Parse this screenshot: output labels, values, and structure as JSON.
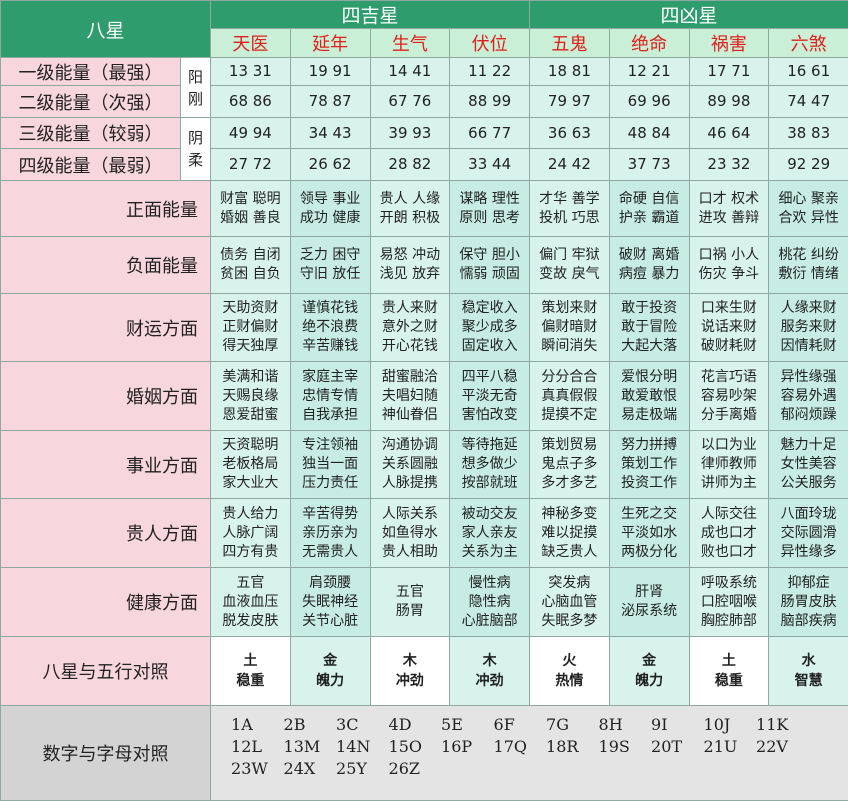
{
  "header": {
    "title": "八星",
    "auspicious": "四吉星",
    "inauspicious": "四凶星",
    "stars": [
      "天医",
      "延年",
      "生气",
      "伏位",
      "五鬼",
      "绝命",
      "祸害",
      "六煞"
    ]
  },
  "energy": {
    "yang": "阳刚",
    "yin": "阴柔",
    "rows": [
      {
        "label": "一级能量（最强）",
        "values": [
          "13 31",
          "19 91",
          "14 41",
          "11 22",
          "18 81",
          "12 21",
          "17 71",
          "16 61"
        ]
      },
      {
        "label": "二级能量（次强）",
        "values": [
          "68 86",
          "78 87",
          "67 76",
          "88 99",
          "79 97",
          "69 96",
          "89 98",
          "74 47"
        ]
      },
      {
        "label": "三级能量（较弱）",
        "values": [
          "49 94",
          "34 43",
          "39 93",
          "66 77",
          "36 63",
          "48 84",
          "46 64",
          "38 83"
        ]
      },
      {
        "label": "四级能量（最弱）",
        "values": [
          "27 72",
          "26 62",
          "28 82",
          "33 44",
          "24 42",
          "37 73",
          "23 32",
          "92 29"
        ]
      }
    ]
  },
  "traits": [
    {
      "label": "正面能量",
      "cells": [
        [
          "财富 聪明",
          "婚姻 善良"
        ],
        [
          "领导 事业",
          "成功 健康"
        ],
        [
          "贵人 人缘",
          "开朗 积极"
        ],
        [
          "谋略 理性",
          "原则 思考"
        ],
        [
          "才华 善学",
          "投机 巧思"
        ],
        [
          "命硬 自信",
          "护亲 霸道"
        ],
        [
          "口才 权术",
          "进攻 善辩"
        ],
        [
          "细心 聚亲",
          "合欢 异性"
        ]
      ]
    },
    {
      "label": "负面能量",
      "cells": [
        [
          "债务 自闭",
          "贫困 自负"
        ],
        [
          "乏力 困守",
          "守旧 放任"
        ],
        [
          "易怒 冲动",
          "浅见 放弃"
        ],
        [
          "保守 胆小",
          "懦弱 顽固"
        ],
        [
          "偏门 牢狱",
          "变故 戾气"
        ],
        [
          "破财 离婚",
          "病痘 暴力"
        ],
        [
          "口祸 小人",
          "伤灾 争斗"
        ],
        [
          "桃花 纠纷",
          "敷衍 情绪"
        ]
      ]
    },
    {
      "label": "财运方面",
      "cells": [
        [
          "天助资财",
          "正财偏财",
          "得天独厚"
        ],
        [
          "谨慎花钱",
          "绝不浪费",
          "辛苦赚钱"
        ],
        [
          "贵人来财",
          "意外之财",
          "开心花钱"
        ],
        [
          "稳定收入",
          "聚少成多",
          "固定收入"
        ],
        [
          "策划来财",
          "偏财暗财",
          "瞬间消失"
        ],
        [
          "敢于投资",
          "敢于冒险",
          "大起大落"
        ],
        [
          "口来生财",
          "说话来财",
          "破财耗财"
        ],
        [
          "人缘来财",
          "服务来财",
          "因情耗财"
        ]
      ]
    },
    {
      "label": "婚姻方面",
      "cells": [
        [
          "美满和谐",
          "天赐良缘",
          "恩爱甜蜜"
        ],
        [
          "家庭主宰",
          "忠情专情",
          "自我承担"
        ],
        [
          "甜蜜融洽",
          "夫唱妇随",
          "神仙眷侣"
        ],
        [
          "四平八稳",
          "平淡无奇",
          "害怕改变"
        ],
        [
          "分分合合",
          "真真假假",
          "提摸不定"
        ],
        [
          "爱恨分明",
          "敢爱敢恨",
          "易走极端"
        ],
        [
          "花言巧语",
          "容易吵架",
          "分手离婚"
        ],
        [
          "异性缘强",
          "容易外遇",
          "郁闷烦躁"
        ]
      ]
    },
    {
      "label": "事业方面",
      "cells": [
        [
          "天资聪明",
          "老板格局",
          "家大业大"
        ],
        [
          "专注领袖",
          "独当一面",
          "压力责任"
        ],
        [
          "沟通协调",
          "关系圆融",
          "人脉提携"
        ],
        [
          "等待拖延",
          "想多做少",
          "按部就班"
        ],
        [
          "策划贸易",
          "鬼点子多",
          "多才多艺"
        ],
        [
          "努力拼搏",
          "策划工作",
          "投资工作"
        ],
        [
          "以口为业",
          "律师教师",
          "讲师为主"
        ],
        [
          "魅力十足",
          "女性美容",
          "公关服务"
        ]
      ]
    },
    {
      "label": "贵人方面",
      "cells": [
        [
          "贵人给力",
          "人脉广阔",
          "四方有贵"
        ],
        [
          "辛苦得势",
          "亲历亲为",
          "无需贵人"
        ],
        [
          "人际关系",
          "如鱼得水",
          "贵人相助"
        ],
        [
          "被动交友",
          "家人亲友",
          "关系为主"
        ],
        [
          "神秘多变",
          "难以捉摸",
          "缺乏贵人"
        ],
        [
          "生死之交",
          "平淡如水",
          "两极分化"
        ],
        [
          "人际交往",
          "成也口才",
          "败也口才"
        ],
        [
          "八面玲珑",
          "交际圆滑",
          "异性缘多"
        ]
      ]
    },
    {
      "label": "健康方面",
      "cells": [
        [
          "五官",
          "血液血压",
          "脱发皮肤"
        ],
        [
          "肩颈腰",
          "失眠神经",
          "关节心脏"
        ],
        [
          "五官",
          "肠胃"
        ],
        [
          "慢性病",
          "隐性病",
          "心脏脑部"
        ],
        [
          "突发病",
          "心脑血管",
          "失眠多梦"
        ],
        [
          "肝肾",
          "泌尿系统"
        ],
        [
          "呼吸系统",
          "口腔咽喉",
          "胸腔肺部"
        ],
        [
          "抑郁症",
          "肠胃皮肤",
          "脑部疾病"
        ]
      ]
    }
  ],
  "elements": {
    "label": "八星与五行对照",
    "cells": [
      [
        "土",
        "稳重"
      ],
      [
        "金",
        "魄力"
      ],
      [
        "木",
        "冲劲"
      ],
      [
        "木",
        "冲劲"
      ],
      [
        "火",
        "热情"
      ],
      [
        "金",
        "魄力"
      ],
      [
        "土",
        "稳重"
      ],
      [
        "水",
        "智慧"
      ]
    ]
  },
  "letters": {
    "label": "数字与字母对照",
    "items": [
      "1A",
      "2B",
      "3C",
      "4D",
      "5E",
      "6F",
      "7G",
      "8H",
      "9I",
      "10J",
      "11K",
      "12L",
      "13M",
      "14N",
      "15O",
      "16P",
      "17Q",
      "18R",
      "19S",
      "20T",
      "21U",
      "22V",
      "23W",
      "24X",
      "25Y",
      "26Z"
    ]
  }
}
